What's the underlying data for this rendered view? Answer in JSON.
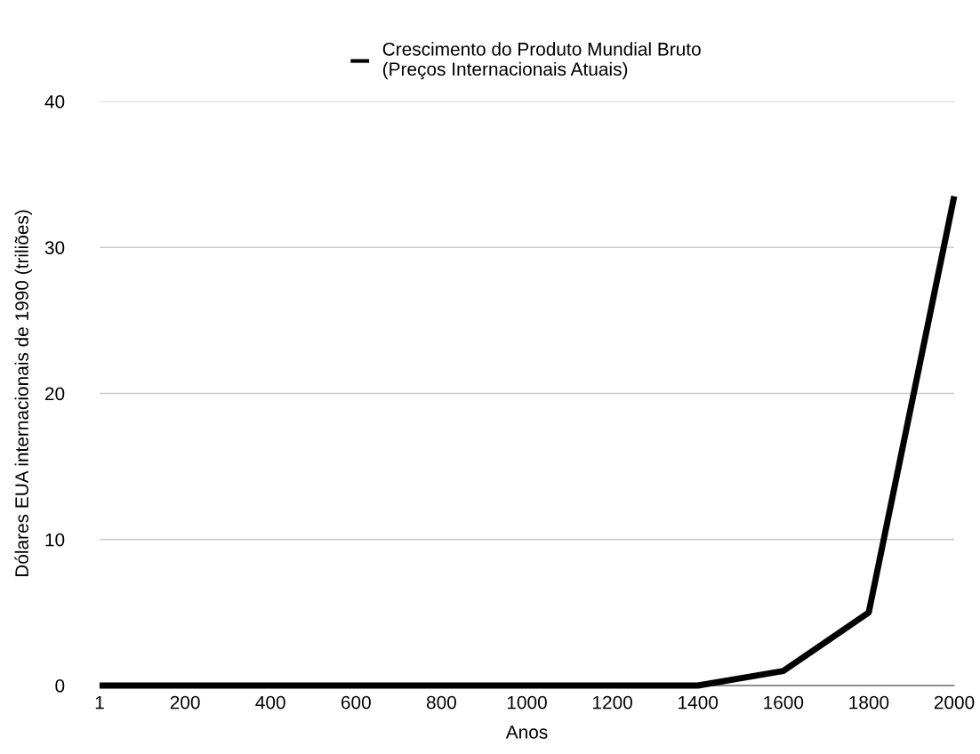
{
  "chart_data": {
    "type": "line",
    "xlabel": "Anos",
    "ylabel": "Dólares EUA internacionais de 1990 (triliões)",
    "categories": [
      "1",
      "200",
      "400",
      "600",
      "800",
      "1000",
      "1200",
      "1400",
      "1600",
      "1800",
      "2000"
    ],
    "series": [
      {
        "name": "Crescimento do Produto Mundial Bruto\n(Preços Internacionais Atuais)",
        "color": "#000000",
        "values": [
          0,
          0,
          0,
          0,
          0,
          0,
          0,
          0,
          1,
          5,
          33.5
        ]
      }
    ],
    "ylim": [
      0,
      40
    ],
    "yticks": [
      0,
      10,
      20,
      30,
      40
    ],
    "grid": "y",
    "legend": "top",
    "marker": "none",
    "line_style": "solid"
  }
}
